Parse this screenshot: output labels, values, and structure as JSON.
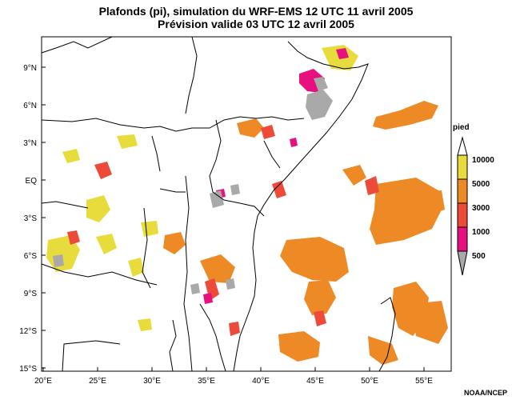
{
  "title_line1": "Plafonds (pi), simulation du WRF-EMS 12 UTC 11 avril 2005",
  "title_line2": "Prévision valide 03 UTC 12 avril 2005",
  "axes": {
    "x_ticks": [
      "20°E",
      "25°E",
      "30°E",
      "35°E",
      "40°E",
      "45°E",
      "50°E",
      "55°E"
    ],
    "y_ticks": [
      "9°N",
      "6°N",
      "3°N",
      "EQ",
      "3°S",
      "6°S",
      "9°S",
      "12°S",
      "15°S"
    ]
  },
  "legend": {
    "title": "pied",
    "levels": [
      {
        "label": "10000",
        "color": "#e8dc3c"
      },
      {
        "label": "5000",
        "color": "#ee8a26"
      },
      {
        "label": "3000",
        "color": "#ee4a3a"
      },
      {
        "label": "1000",
        "color": "#e8107e"
      },
      {
        "label": "500",
        "color": "#a9a9a9"
      }
    ]
  },
  "credit": "NOAA/NCEP",
  "colors": {
    "yellow": "#e8dc3c",
    "orange": "#ee8a26",
    "red": "#ee4a3a",
    "magenta": "#e8107e",
    "gray": "#a9a9a9"
  }
}
